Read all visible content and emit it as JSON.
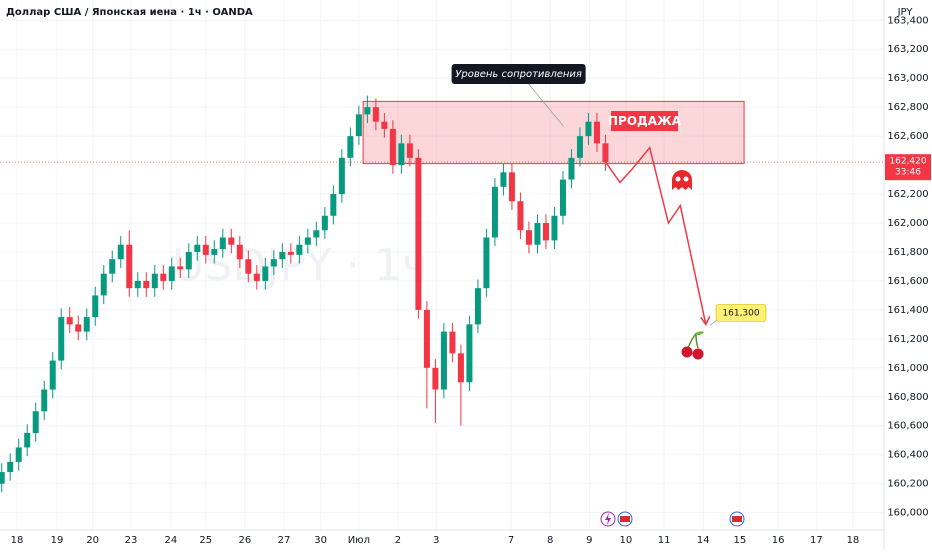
{
  "chart_data": {
    "type": "candlestick",
    "title": "Доллар США / Японская иена · 1ч · OANDA",
    "watermark": "USDJPY · 1ч",
    "currency": "JPY",
    "up_color": "#089981",
    "down_color": "#f23645",
    "open": [
      160.2,
      160.28,
      160.35,
      160.45,
      160.55,
      160.7,
      160.85,
      161.05,
      161.35,
      161.3,
      161.25,
      161.35,
      161.5,
      161.65,
      161.75,
      161.85,
      161.55,
      161.6,
      161.55,
      161.65,
      161.6,
      161.7,
      161.68,
      161.8,
      161.85,
      161.78,
      161.82,
      161.9,
      161.85,
      161.75,
      161.65,
      161.6,
      161.7,
      161.75,
      161.8,
      161.78,
      161.85,
      161.9,
      161.95,
      162.05,
      162.2,
      162.45,
      162.6,
      162.75,
      162.8,
      162.7,
      162.65,
      162.4,
      162.55,
      162.45,
      161.4,
      161.0,
      160.85,
      161.25,
      161.1,
      160.9,
      161.3,
      161.55,
      161.9,
      162.25,
      162.35,
      162.15,
      161.95,
      161.85,
      162.0,
      161.88,
      162.05,
      162.3,
      162.45,
      162.6,
      162.7,
      162.55
    ],
    "high": [
      160.34,
      160.41,
      160.51,
      160.61,
      160.76,
      160.91,
      161.11,
      161.41,
      161.42,
      161.36,
      161.41,
      161.56,
      161.71,
      161.81,
      161.91,
      161.95,
      161.66,
      161.66,
      161.71,
      161.71,
      161.76,
      161.76,
      161.86,
      161.91,
      161.91,
      161.88,
      161.96,
      161.96,
      161.91,
      161.81,
      161.71,
      161.76,
      161.81,
      161.86,
      161.86,
      161.91,
      161.96,
      162.01,
      162.11,
      162.26,
      162.51,
      162.66,
      162.81,
      162.88,
      162.86,
      162.76,
      162.71,
      162.61,
      162.61,
      162.51,
      161.46,
      161.06,
      161.31,
      161.31,
      161.16,
      161.36,
      161.61,
      161.96,
      162.31,
      162.41,
      162.41,
      162.21,
      162.01,
      162.06,
      162.06,
      162.11,
      162.36,
      162.51,
      162.66,
      162.76,
      162.76,
      162.61
    ],
    "low": [
      160.14,
      160.22,
      160.29,
      160.39,
      160.49,
      160.64,
      160.79,
      160.99,
      161.24,
      161.19,
      161.19,
      161.29,
      161.44,
      161.59,
      161.69,
      161.49,
      161.49,
      161.49,
      161.49,
      161.54,
      161.54,
      161.62,
      161.62,
      161.74,
      161.72,
      161.72,
      161.76,
      161.79,
      161.69,
      161.59,
      161.54,
      161.54,
      161.64,
      161.69,
      161.72,
      161.72,
      161.79,
      161.84,
      161.89,
      161.99,
      162.14,
      162.39,
      162.54,
      162.69,
      162.64,
      162.59,
      162.34,
      162.34,
      162.39,
      161.34,
      160.72,
      160.62,
      160.79,
      161.04,
      160.6,
      160.84,
      161.24,
      161.49,
      161.84,
      162.19,
      162.09,
      161.89,
      161.79,
      161.79,
      161.82,
      161.82,
      161.99,
      162.24,
      162.39,
      162.54,
      162.49,
      162.36
    ],
    "close": [
      160.28,
      160.35,
      160.45,
      160.55,
      160.7,
      160.85,
      161.05,
      161.35,
      161.3,
      161.25,
      161.35,
      161.5,
      161.65,
      161.75,
      161.85,
      161.55,
      161.6,
      161.55,
      161.65,
      161.6,
      161.7,
      161.68,
      161.8,
      161.85,
      161.78,
      161.82,
      161.9,
      161.85,
      161.75,
      161.65,
      161.6,
      161.7,
      161.75,
      161.8,
      161.78,
      161.85,
      161.9,
      161.95,
      162.05,
      162.2,
      162.45,
      162.6,
      162.75,
      162.8,
      162.7,
      162.65,
      162.4,
      162.55,
      162.45,
      161.4,
      161.0,
      160.85,
      161.25,
      161.1,
      160.9,
      161.3,
      161.55,
      161.9,
      162.25,
      162.35,
      162.15,
      161.95,
      161.85,
      162.0,
      161.88,
      162.05,
      162.3,
      162.45,
      162.6,
      162.7,
      162.55,
      162.42
    ],
    "xlim": [
      -0.2,
      103.4
    ],
    "xticks": [
      {
        "value": 1.8,
        "label": "18"
      },
      {
        "value": 6.5,
        "label": "19"
      },
      {
        "value": 10.7,
        "label": "20"
      },
      {
        "value": 15.2,
        "label": "23"
      },
      {
        "value": 19.9,
        "label": "24"
      },
      {
        "value": 24,
        "label": "25"
      },
      {
        "value": 28.6,
        "label": "26"
      },
      {
        "value": 33.2,
        "label": "27"
      },
      {
        "value": 37.5,
        "label": "30"
      },
      {
        "value": 42,
        "label": "Июл"
      },
      {
        "value": 46.6,
        "label": "2"
      },
      {
        "value": 51.1,
        "label": "3"
      },
      {
        "value": 59.9,
        "label": "7"
      },
      {
        "value": 64.5,
        "label": "8"
      },
      {
        "value": 69.1,
        "label": "9"
      },
      {
        "value": 73.4,
        "label": "10"
      },
      {
        "value": 77.9,
        "label": "11"
      },
      {
        "value": 82.5,
        "label": "14"
      },
      {
        "value": 86.8,
        "label": "15"
      },
      {
        "value": 91.3,
        "label": "16"
      },
      {
        "value": 95.8,
        "label": "17"
      },
      {
        "value": 100.1,
        "label": "18"
      }
    ],
    "ylim": [
      159.88,
      163.54
    ],
    "yticks": [
      {
        "value": 160,
        "label": "160,000"
      },
      {
        "value": 160.2,
        "label": "160,200"
      },
      {
        "value": 160.4,
        "label": "160,400"
      },
      {
        "value": 160.6,
        "label": "160,600"
      },
      {
        "value": 160.8,
        "label": "160,800"
      },
      {
        "value": 161,
        "label": "161,000"
      },
      {
        "value": 161.2,
        "label": "161,200"
      },
      {
        "value": 161.4,
        "label": "161,400"
      },
      {
        "value": 161.6,
        "label": "161,600"
      },
      {
        "value": 161.8,
        "label": "161,800"
      },
      {
        "value": 162,
        "label": "162,000"
      },
      {
        "value": 162.2,
        "label": "162,200"
      },
      {
        "value": 162.6,
        "label": "162,600"
      },
      {
        "value": 162.8,
        "label": "162,800"
      },
      {
        "value": 163,
        "label": "163,000"
      },
      {
        "value": 163.2,
        "label": "163,200"
      },
      {
        "value": 163.4,
        "label": "163,400"
      }
    ],
    "last_price": {
      "value": 162.42,
      "label": "162,420",
      "countdown": "33:46"
    },
    "zone": {
      "label": "Уровень сопротивления",
      "x": [
        42.5,
        87.3
      ],
      "y": [
        162.41,
        162.84
      ],
      "color": "#f23645"
    },
    "signal": "ПРОДАЖА",
    "projection": {
      "x": [
        70.9,
        72.7,
        74.1,
        76.2,
        78.4,
        79.8,
        82.8
      ],
      "y": [
        162.43,
        162.28,
        162.37,
        162.52,
        162.0,
        162.12,
        161.3
      ],
      "color": "#f23645"
    },
    "target": {
      "value": 161.3,
      "label": "161,300"
    }
  }
}
